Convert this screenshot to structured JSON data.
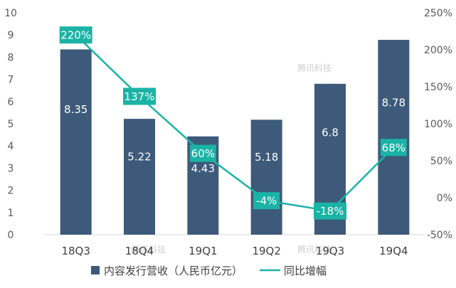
{
  "chart_data": {
    "type": "bar",
    "categories": [
      "18Q3",
      "18Q4",
      "19Q1",
      "19Q2",
      "19Q3",
      "19Q4"
    ],
    "series": [
      {
        "name": "内容发行营收（人民币亿元）",
        "type": "bar",
        "axis": "left",
        "values": [
          8.35,
          5.22,
          4.43,
          5.18,
          6.8,
          8.78
        ],
        "labels": [
          "8.35",
          "5.22",
          "4.43",
          "5.18",
          "6.8",
          "8.78"
        ],
        "color": "#3d5a7a"
      },
      {
        "name": "同比增幅",
        "type": "line",
        "axis": "right",
        "values": [
          220,
          137,
          60,
          -4,
          -18,
          68
        ],
        "labels": [
          "220%",
          "137%",
          "60%",
          "-4%",
          "-18%",
          "68%"
        ],
        "color": "#1ab3a6"
      }
    ],
    "left_axis": {
      "ylim": [
        0,
        10
      ],
      "ticks": [
        "0",
        "1",
        "2",
        "3",
        "4",
        "5",
        "6",
        "7",
        "8",
        "9",
        "10"
      ]
    },
    "right_axis": {
      "ylim": [
        -50,
        250
      ],
      "ticks": [
        "-50%",
        "0%",
        "50%",
        "100%",
        "150%",
        "200%",
        "250%"
      ]
    },
    "grid": false,
    "legend": "bottom",
    "watermark": "腾讯科技"
  }
}
